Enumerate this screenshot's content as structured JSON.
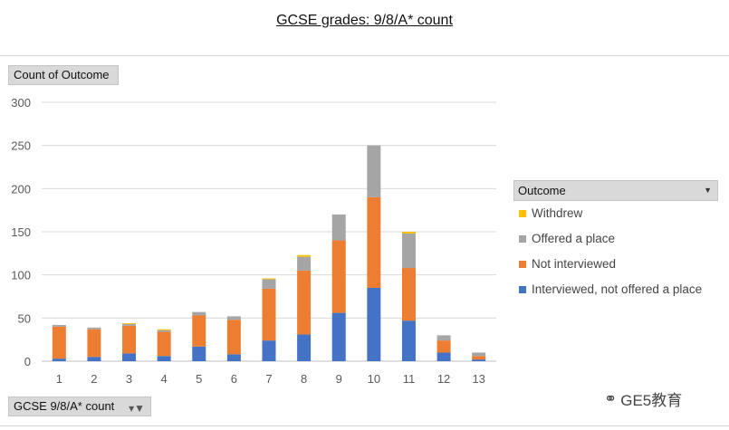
{
  "chart_data": {
    "type": "bar",
    "stacked": true,
    "title": "GCSE grades: 9/8/A* count",
    "ylabel": "Count of Outcome",
    "xlabel": "GCSE 9/8/A* count",
    "ylim": [
      0,
      300
    ],
    "yticks": [
      0,
      50,
      100,
      150,
      200,
      250,
      300
    ],
    "grid": true,
    "legend_position": "right",
    "legend_title": "Outcome",
    "categories": [
      "1",
      "2",
      "3",
      "4",
      "5",
      "6",
      "7",
      "8",
      "9",
      "10",
      "11",
      "12",
      "13"
    ],
    "series": [
      {
        "name": "Interviewed, not offered a place",
        "color": "#4472C4",
        "values": [
          3,
          5,
          9,
          6,
          17,
          8,
          24,
          31,
          56,
          85,
          47,
          10,
          2
        ]
      },
      {
        "name": "Not interviewed",
        "color": "#ED7D31",
        "values": [
          37,
          32,
          32,
          28,
          36,
          40,
          60,
          74,
          84,
          105,
          61,
          14,
          4
        ]
      },
      {
        "name": "Offered a place",
        "color": "#A5A5A5",
        "values": [
          2,
          2,
          2,
          2,
          4,
          4,
          11,
          16,
          30,
          60,
          40,
          6,
          4
        ]
      },
      {
        "name": "Withdrew",
        "color": "#FFC000",
        "values": [
          0,
          0,
          1,
          1,
          0,
          0,
          1,
          2,
          0,
          0,
          2,
          0,
          0
        ]
      }
    ]
  },
  "watermark": {
    "icon": "wechat-icon",
    "text": "GE5教育"
  }
}
